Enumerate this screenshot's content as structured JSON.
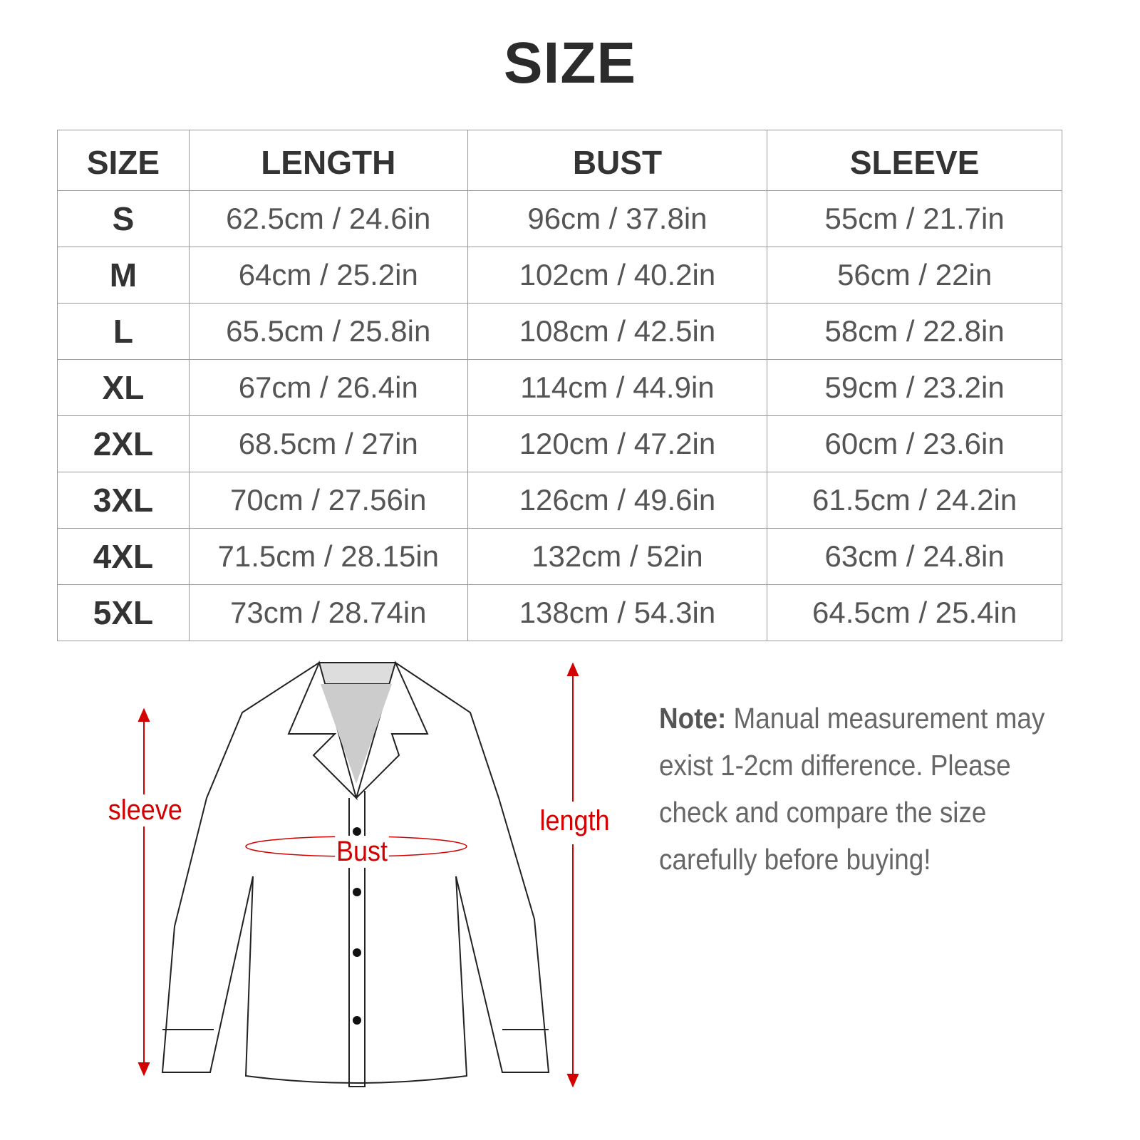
{
  "title": "SIZE",
  "table": {
    "headers": [
      "SIZE",
      "LENGTH",
      "BUST",
      "SLEEVE"
    ],
    "rows": [
      [
        "S",
        "62.5cm / 24.6in",
        "96cm / 37.8in",
        "55cm / 21.7in"
      ],
      [
        "M",
        "64cm / 25.2in",
        "102cm / 40.2in",
        "56cm / 22in"
      ],
      [
        "L",
        "65.5cm / 25.8in",
        "108cm / 42.5in",
        "58cm / 22.8in"
      ],
      [
        "XL",
        "67cm / 26.4in",
        "114cm / 44.9in",
        "59cm / 23.2in"
      ],
      [
        "2XL",
        "68.5cm / 27in",
        "120cm / 47.2in",
        "60cm / 23.6in"
      ],
      [
        "3XL",
        "70cm / 27.56in",
        "126cm / 49.6in",
        "61.5cm / 24.2in"
      ],
      [
        "4XL",
        "71.5cm / 28.15in",
        "132cm / 52in",
        "63cm / 24.8in"
      ],
      [
        "5XL",
        "73cm / 28.74in",
        "138cm / 54.3in",
        "64.5cm / 25.4in"
      ]
    ]
  },
  "diagram": {
    "sleeve_label": "sleeve",
    "length_label": "length",
    "bust_label": "Bust",
    "accent_color": "#d40000"
  },
  "note": {
    "label": "Note:",
    "text": " Manual measurement may exist 1-2cm difference. Please check and compare the size carefully before buying!"
  }
}
